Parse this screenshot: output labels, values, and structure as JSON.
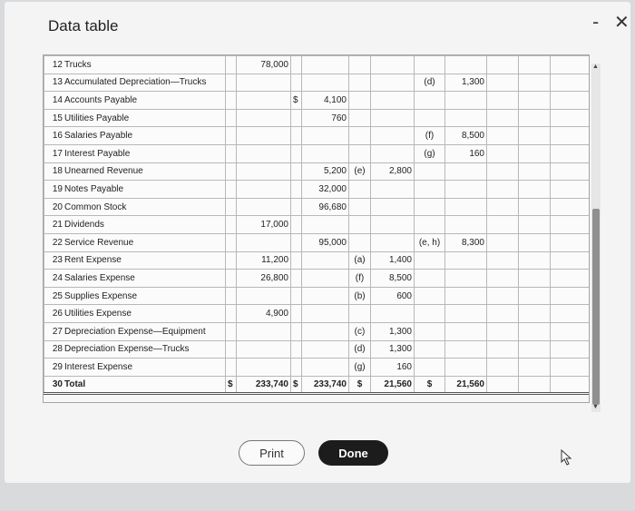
{
  "window": {
    "title": "Data table",
    "minimize": "-",
    "close": "✕"
  },
  "rows": [
    {
      "num": "12",
      "account": "Trucks",
      "c1": "78,000",
      "c2s": "",
      "c2": "",
      "r1": "",
      "c3": "",
      "r2": "",
      "c4": ""
    },
    {
      "num": "13",
      "account": "Accumulated Depreciation—Trucks",
      "c1": "",
      "c2s": "",
      "c2": "",
      "r1": "",
      "c3": "",
      "r2": "(d)",
      "c4": "1,300"
    },
    {
      "num": "14",
      "account": "Accounts Payable",
      "c1": "",
      "c2s": "$",
      "c2": "4,100",
      "r1": "",
      "c3": "",
      "r2": "",
      "c4": ""
    },
    {
      "num": "15",
      "account": "Utilities Payable",
      "c1": "",
      "c2s": "",
      "c2": "760",
      "r1": "",
      "c3": "",
      "r2": "",
      "c4": ""
    },
    {
      "num": "16",
      "account": "Salaries Payable",
      "c1": "",
      "c2s": "",
      "c2": "",
      "r1": "",
      "c3": "",
      "r2": "(f)",
      "c4": "8,500"
    },
    {
      "num": "17",
      "account": "Interest Payable",
      "c1": "",
      "c2s": "",
      "c2": "",
      "r1": "",
      "c3": "",
      "r2": "(g)",
      "c4": "160"
    },
    {
      "num": "18",
      "account": "Unearned Revenue",
      "c1": "",
      "c2s": "",
      "c2": "5,200",
      "r1": "(e)",
      "c3": "2,800",
      "r2": "",
      "c4": ""
    },
    {
      "num": "19",
      "account": "Notes Payable",
      "c1": "",
      "c2s": "",
      "c2": "32,000",
      "r1": "",
      "c3": "",
      "r2": "",
      "c4": ""
    },
    {
      "num": "20",
      "account": "Common Stock",
      "c1": "",
      "c2s": "",
      "c2": "96,680",
      "r1": "",
      "c3": "",
      "r2": "",
      "c4": ""
    },
    {
      "num": "21",
      "account": "Dividends",
      "c1": "17,000",
      "c2s": "",
      "c2": "",
      "r1": "",
      "c3": "",
      "r2": "",
      "c4": ""
    },
    {
      "num": "22",
      "account": "Service Revenue",
      "c1": "",
      "c2s": "",
      "c2": "95,000",
      "r1": "",
      "c3": "",
      "r2": "(e, h)",
      "c4": "8,300"
    },
    {
      "num": "23",
      "account": "Rent Expense",
      "c1": "11,200",
      "c2s": "",
      "c2": "",
      "r1": "(a)",
      "c3": "1,400",
      "r2": "",
      "c4": ""
    },
    {
      "num": "24",
      "account": "Salaries Expense",
      "c1": "26,800",
      "c2s": "",
      "c2": "",
      "r1": "(f)",
      "c3": "8,500",
      "r2": "",
      "c4": ""
    },
    {
      "num": "25",
      "account": "Supplies Expense",
      "c1": "",
      "c2s": "",
      "c2": "",
      "r1": "(b)",
      "c3": "600",
      "r2": "",
      "c4": ""
    },
    {
      "num": "26",
      "account": "Utilities Expense",
      "c1": "4,900",
      "c2s": "",
      "c2": "",
      "r1": "",
      "c3": "",
      "r2": "",
      "c4": ""
    },
    {
      "num": "27",
      "account": "Depreciation Expense—Equipment",
      "c1": "",
      "c2s": "",
      "c2": "",
      "r1": "(c)",
      "c3": "1,300",
      "r2": "",
      "c4": ""
    },
    {
      "num": "28",
      "account": "Depreciation Expense—Trucks",
      "c1": "",
      "c2s": "",
      "c2": "",
      "r1": "(d)",
      "c3": "1,300",
      "r2": "",
      "c4": ""
    },
    {
      "num": "29",
      "account": "Interest Expense",
      "c1": "",
      "c2s": "",
      "c2": "",
      "r1": "(g)",
      "c3": "160",
      "r2": "",
      "c4": ""
    }
  ],
  "total": {
    "num": "30",
    "account": "Total",
    "c1s": "$",
    "c1": "233,740",
    "c2s": "$",
    "c2": "233,740",
    "c3s": "$",
    "c3": "21,560",
    "c4s": "$",
    "c4": "21,560"
  },
  "buttons": {
    "print": "Print",
    "done": "Done"
  }
}
